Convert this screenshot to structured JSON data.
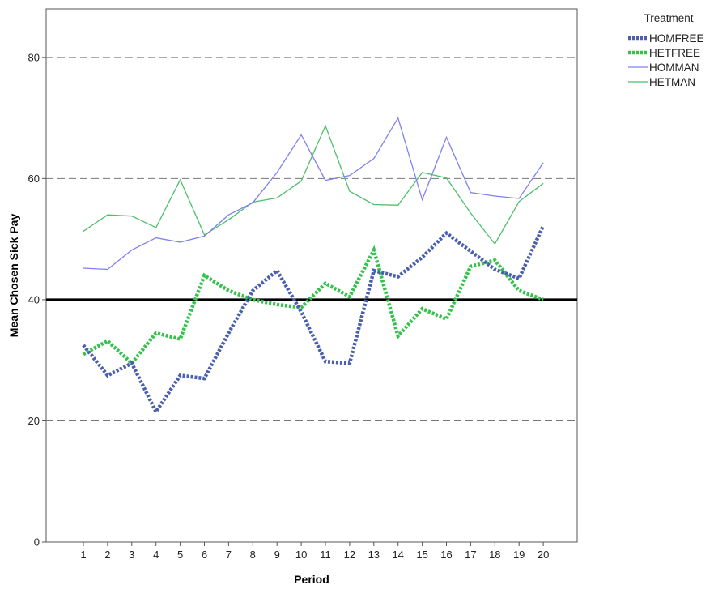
{
  "chart_data": {
    "type": "line",
    "xlabel": "Period",
    "ylabel": "Mean Chosen Sick Pay",
    "categories": [
      "1",
      "2",
      "3",
      "4",
      "5",
      "6",
      "7",
      "8",
      "9",
      "10",
      "11",
      "12",
      "13",
      "14",
      "15",
      "16",
      "17",
      "18",
      "19",
      "20"
    ],
    "ylim": [
      0,
      88
    ],
    "yticks": [
      0,
      20,
      40,
      60,
      80
    ],
    "grid_y": [
      20,
      60,
      80
    ],
    "reference_line": 40,
    "legend_title": "Treatment",
    "legend_position": "top-right",
    "series": [
      {
        "name": "HOMFREE",
        "color": "#4a5fb0",
        "style": "dotted-thick",
        "values": [
          32.5,
          27.5,
          29.5,
          21.5,
          27.5,
          27.0,
          34.5,
          41.5,
          44.8,
          38.0,
          29.8,
          29.5,
          44.8,
          43.8,
          47.0,
          51.0,
          48.0,
          45.0,
          43.5,
          52.2
        ]
      },
      {
        "name": "HETFREE",
        "color": "#33c24a",
        "style": "dotted-thick",
        "values": [
          31.0,
          33.2,
          29.5,
          34.5,
          33.5,
          44.0,
          41.5,
          40.0,
          39.2,
          38.7,
          42.7,
          40.5,
          48.2,
          34.0,
          38.5,
          36.8,
          45.5,
          46.5,
          41.5,
          40.0
        ]
      },
      {
        "name": "HOMMAN",
        "color": "#8080f0",
        "style": "solid",
        "values": [
          45.2,
          45.0,
          48.2,
          50.2,
          49.5,
          50.5,
          54.0,
          56.0,
          61.0,
          67.2,
          59.7,
          60.5,
          63.3,
          70.0,
          56.5,
          66.8,
          57.7,
          57.1,
          56.7,
          62.6
        ]
      },
      {
        "name": "HETMAN",
        "color": "#4cbf6a",
        "style": "solid",
        "values": [
          51.3,
          54.0,
          53.8,
          51.9,
          59.8,
          50.7,
          53.2,
          56.1,
          56.8,
          59.6,
          68.7,
          57.9,
          55.7,
          55.6,
          61.0,
          60.1,
          54.3,
          49.2,
          56.2,
          59.2
        ]
      }
    ]
  }
}
